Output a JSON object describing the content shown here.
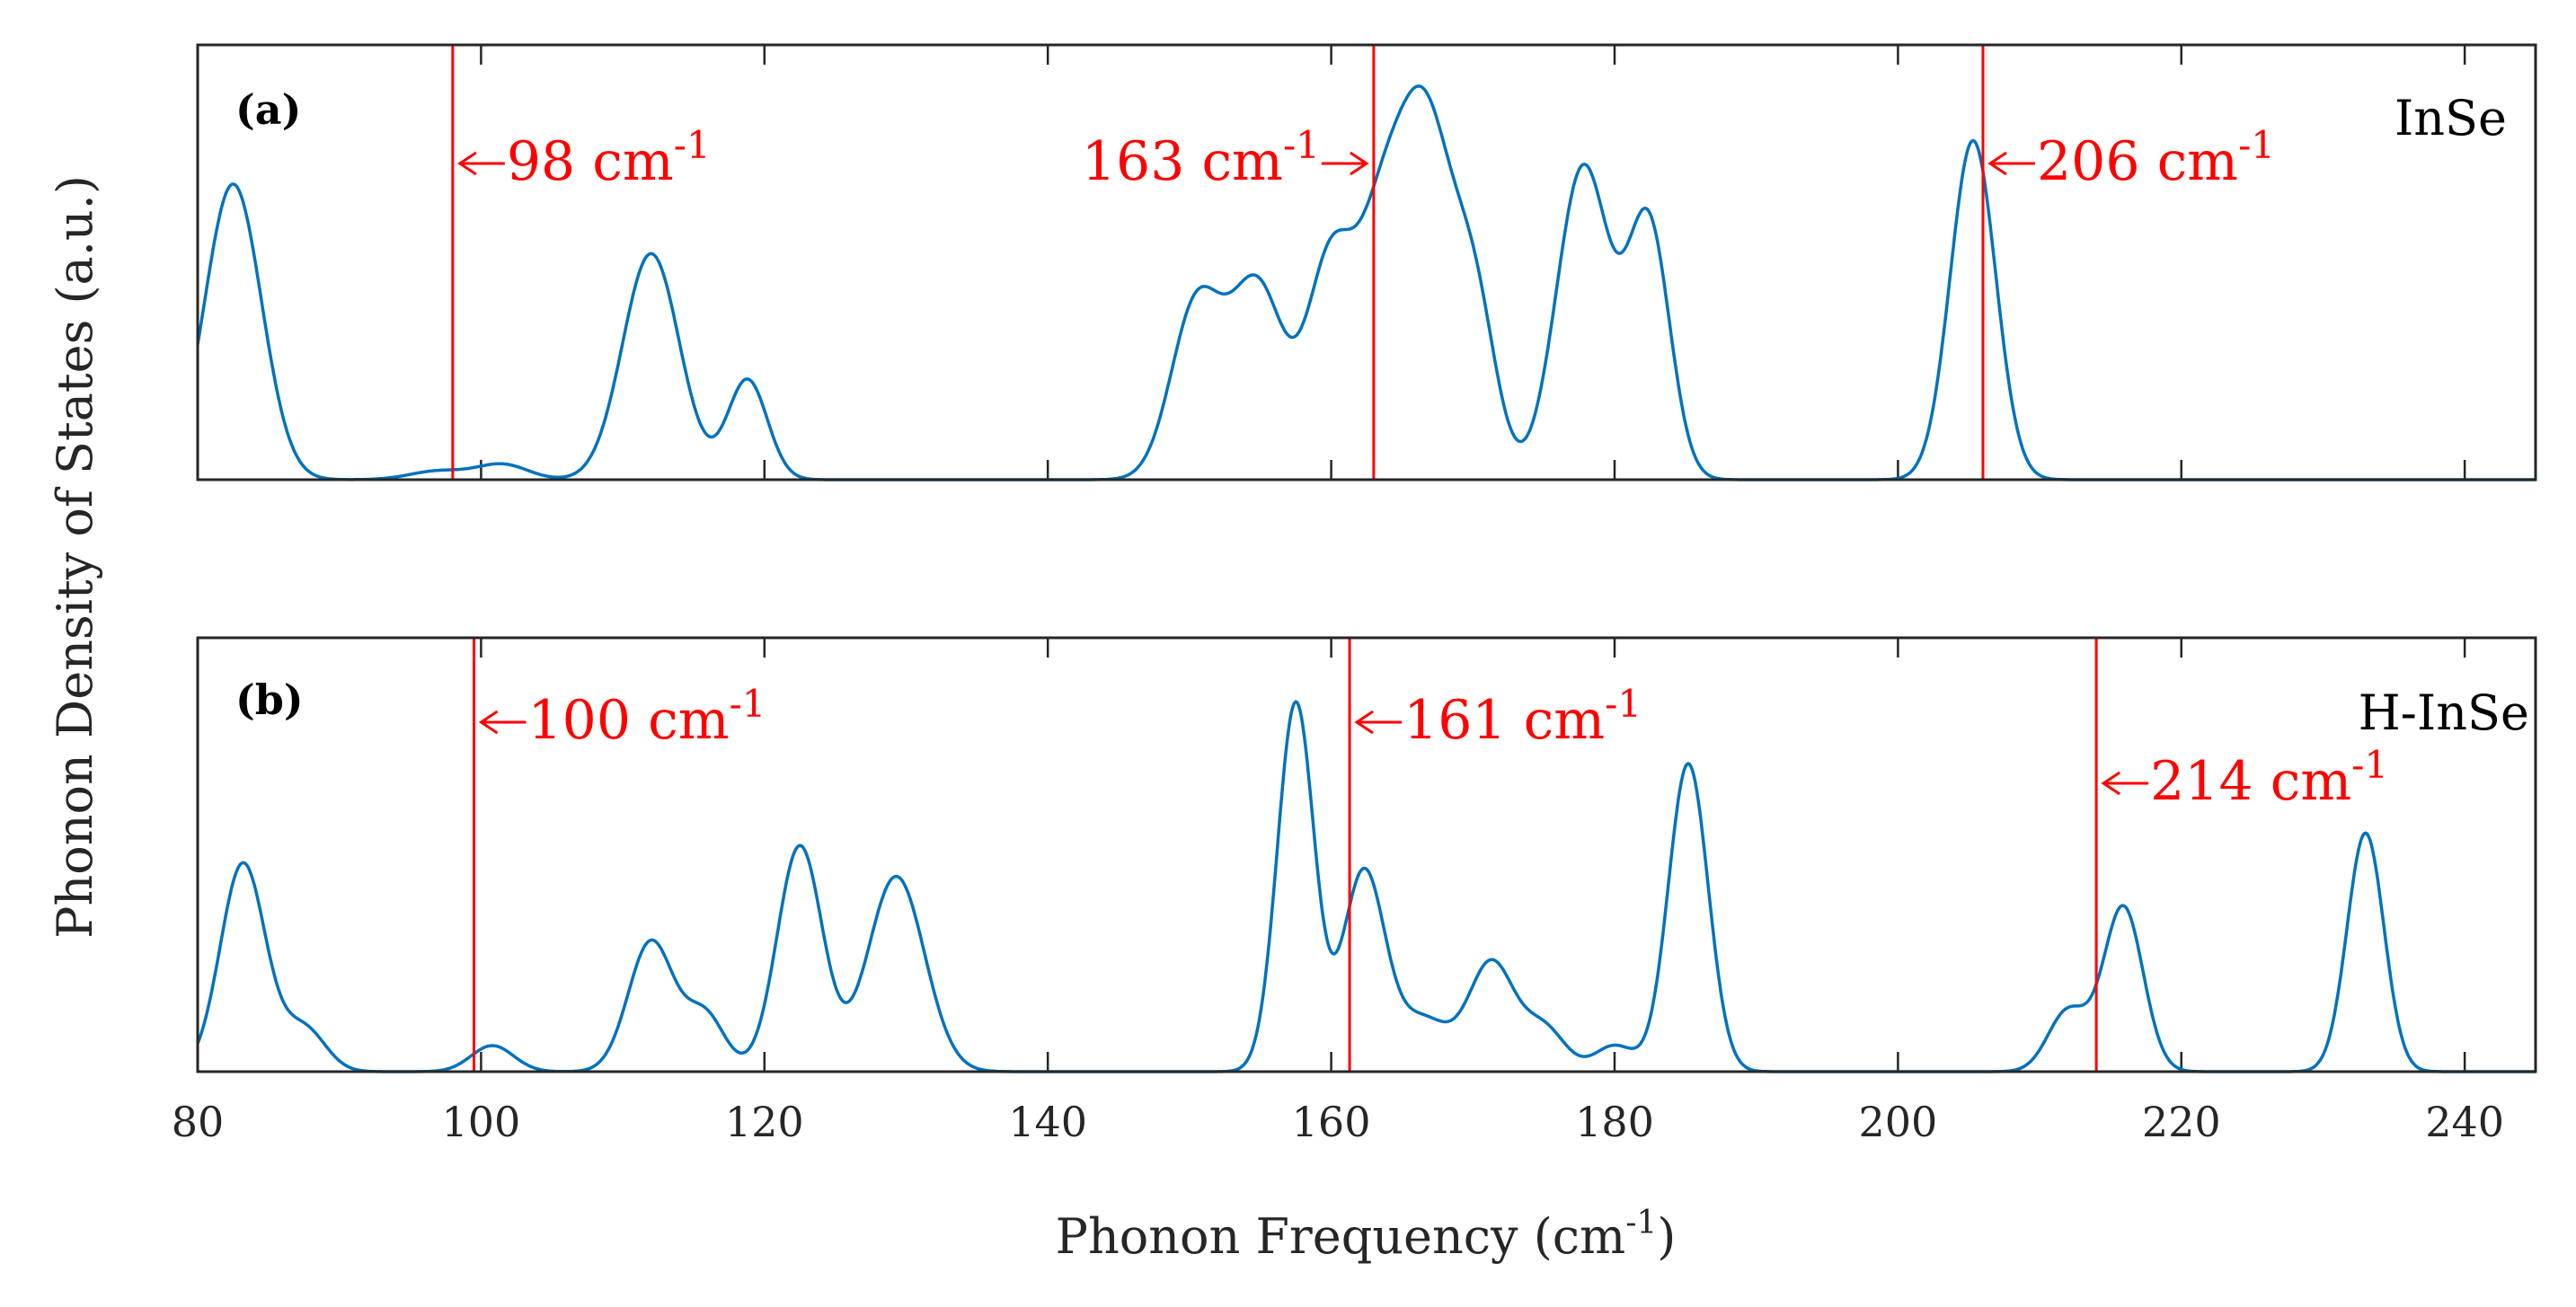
{
  "figure": {
    "ylabel": "Phonon Density of States (a.u.)",
    "xlabel": "Phonon Frequency (cm",
    "xlabel_sup": "-1",
    "xlabel_close": ")"
  },
  "chart_data": [
    {
      "type": "line",
      "panel": "(a)",
      "material": "InSe",
      "xlim": [
        80,
        245
      ],
      "ylim": [
        0,
        1
      ],
      "x_ticks": [
        80,
        100,
        120,
        140,
        160,
        180,
        200,
        220,
        240
      ],
      "tick_labels_visible": false,
      "series_color": "#0072bd",
      "marker_color": "#ff0000",
      "peaks": [
        {
          "x": 82.5,
          "h": 0.68,
          "w": 2.0
        },
        {
          "x": 97.0,
          "h": 0.02,
          "w": 2.0
        },
        {
          "x": 101.5,
          "h": 0.035,
          "w": 1.8
        },
        {
          "x": 112.0,
          "h": 0.52,
          "w": 2.0
        },
        {
          "x": 118.8,
          "h": 0.23,
          "w": 1.4
        },
        {
          "x": 150.5,
          "h": 0.4,
          "w": 1.8
        },
        {
          "x": 154.8,
          "h": 0.44,
          "w": 1.9
        },
        {
          "x": 160.0,
          "h": 0.5,
          "w": 1.7
        },
        {
          "x": 163.4,
          "h": 0.42,
          "w": 1.6
        },
        {
          "x": 166.6,
          "h": 0.82,
          "w": 2.0
        },
        {
          "x": 170.2,
          "h": 0.35,
          "w": 1.5
        },
        {
          "x": 177.8,
          "h": 0.72,
          "w": 1.9
        },
        {
          "x": 182.4,
          "h": 0.58,
          "w": 1.5
        },
        {
          "x": 205.3,
          "h": 0.78,
          "w": 1.6
        }
      ],
      "markers": [
        {
          "x": 98,
          "value": "98",
          "label": "98 cm",
          "sup": "-1",
          "side": "right"
        },
        {
          "x": 163,
          "value": "163",
          "label": "163 cm",
          "sup": "-1",
          "side": "left"
        },
        {
          "x": 206,
          "value": "206",
          "label": "206 cm",
          "sup": "-1",
          "side": "right"
        }
      ]
    },
    {
      "type": "line",
      "panel": "(b)",
      "material": "H-InSe",
      "xlim": [
        80,
        245
      ],
      "ylim": [
        0,
        1
      ],
      "x_ticks": [
        80,
        100,
        120,
        140,
        160,
        180,
        200,
        220,
        240
      ],
      "tick_labels_visible": true,
      "series_color": "#0072bd",
      "marker_color": "#ff0000",
      "peaks": [
        {
          "x": 83.2,
          "h": 0.48,
          "w": 1.6
        },
        {
          "x": 87.5,
          "h": 0.1,
          "w": 1.5
        },
        {
          "x": 100.8,
          "h": 0.06,
          "w": 1.5
        },
        {
          "x": 112.0,
          "h": 0.3,
          "w": 1.6
        },
        {
          "x": 115.8,
          "h": 0.13,
          "w": 1.4
        },
        {
          "x": 122.5,
          "h": 0.52,
          "w": 1.6
        },
        {
          "x": 129.3,
          "h": 0.45,
          "w": 2.0
        },
        {
          "x": 157.5,
          "h": 0.85,
          "w": 1.3
        },
        {
          "x": 162.3,
          "h": 0.46,
          "w": 1.5
        },
        {
          "x": 166.5,
          "h": 0.12,
          "w": 1.8
        },
        {
          "x": 171.3,
          "h": 0.25,
          "w": 1.6
        },
        {
          "x": 175.0,
          "h": 0.1,
          "w": 1.5
        },
        {
          "x": 180.0,
          "h": 0.06,
          "w": 1.4
        },
        {
          "x": 185.2,
          "h": 0.71,
          "w": 1.4
        },
        {
          "x": 212.0,
          "h": 0.14,
          "w": 1.4
        },
        {
          "x": 215.9,
          "h": 0.38,
          "w": 1.4
        },
        {
          "x": 233.0,
          "h": 0.55,
          "w": 1.3
        }
      ],
      "markers": [
        {
          "x": 99.5,
          "value": "100",
          "label": "100 cm",
          "sup": "-1",
          "side": "right"
        },
        {
          "x": 161.3,
          "value": "161",
          "label": "161 cm",
          "sup": "-1",
          "side": "right"
        },
        {
          "x": 214,
          "value": "214",
          "label": "214 cm",
          "sup": "-1",
          "side": "right"
        }
      ]
    }
  ]
}
